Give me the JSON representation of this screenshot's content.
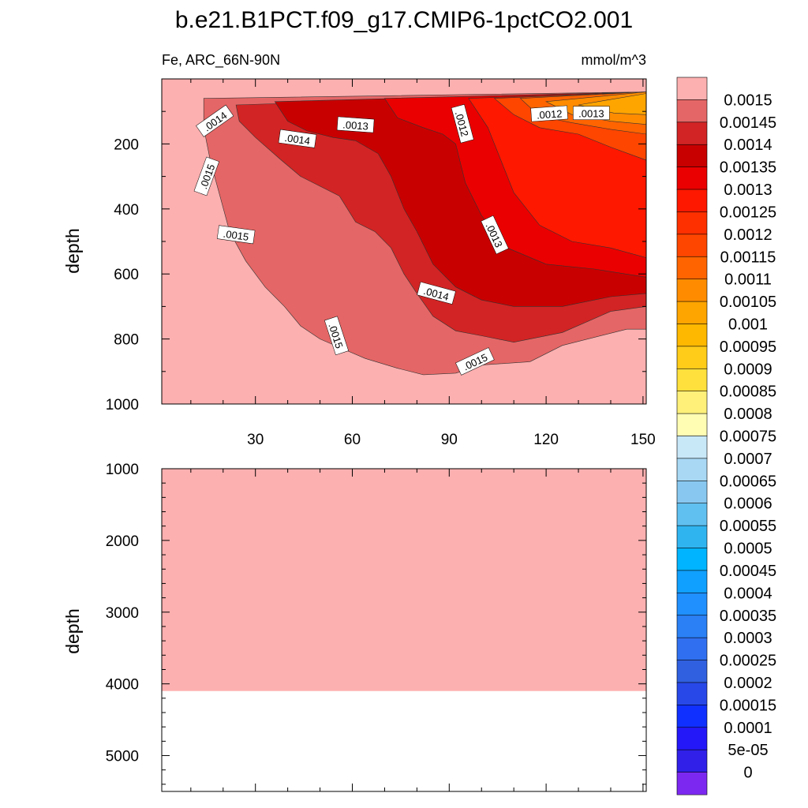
{
  "chart_data": {
    "type": "contour",
    "title": "b.e21.B1PCT.f09_g17.CMIP6-1pctCO2.001",
    "left_string": "Fe, ARC_66N-90N",
    "right_string": "mmol/m^3",
    "panels": [
      {
        "name": "upper",
        "ylabel": "depth",
        "xlabel": "",
        "xlim": [
          1,
          151
        ],
        "ylim": [
          0,
          1000
        ],
        "y_reversed": true,
        "x_ticks": [
          30,
          60,
          90,
          120,
          150
        ],
        "x_tick_labels": [
          "30",
          "60",
          "90",
          "120",
          "150"
        ],
        "y_ticks": [
          200,
          400,
          600,
          800,
          1000
        ],
        "y_tick_labels": [
          "200",
          "400",
          "600",
          "800",
          "1000"
        ],
        "regions": [
          {
            "level": 0.0015,
            "color": "#fdb0b0",
            "pts": [
              [
                1,
                0
              ],
              [
                151,
                0
              ],
              [
                151,
                1000
              ],
              [
                1,
                1000
              ]
            ]
          },
          {
            "level": 0.00145,
            "color": "#e56666",
            "pts": [
              [
                14,
                60
              ],
              [
                151,
                40
              ],
              [
                151,
                770
              ],
              [
                145,
                770
              ],
              [
                125,
                820
              ],
              [
                115,
                870
              ],
              [
                100,
                880
              ],
              [
                92,
                905
              ],
              [
                82,
                910
              ],
              [
                74,
                890
              ],
              [
                64,
                860
              ],
              [
                57,
                830
              ],
              [
                50,
                800
              ],
              [
                44,
                760
              ],
              [
                39,
                700
              ],
              [
                33,
                640
              ],
              [
                27,
                560
              ],
              [
                22,
                470
              ],
              [
                19,
                360
              ],
              [
                16,
                250
              ],
              [
                14,
                150
              ]
            ]
          },
          {
            "level": 0.0014,
            "color": "#d22424",
            "pts": [
              [
                24,
                80
              ],
              [
                151,
                40
              ],
              [
                151,
                700
              ],
              [
                140,
                715
              ],
              [
                125,
                780
              ],
              [
                110,
                810
              ],
              [
                100,
                790
              ],
              [
                92,
                775
              ],
              [
                85,
                730
              ],
              [
                80,
                660
              ],
              [
                76,
                600
              ],
              [
                72,
                520
              ],
              [
                67,
                470
              ],
              [
                61,
                440
              ],
              [
                56,
                360
              ],
              [
                50,
                330
              ],
              [
                44,
                300
              ],
              [
                38,
                250
              ],
              [
                30,
                180
              ],
              [
                25,
                130
              ]
            ]
          },
          {
            "level": 0.00135,
            "color": "#c80000",
            "pts": [
              [
                36,
                70
              ],
              [
                151,
                40
              ],
              [
                151,
                660
              ],
              [
                140,
                670
              ],
              [
                125,
                700
              ],
              [
                110,
                700
              ],
              [
                100,
                680
              ],
              [
                92,
                640
              ],
              [
                85,
                570
              ],
              [
                80,
                470
              ],
              [
                76,
                400
              ],
              [
                72,
                300
              ],
              [
                68,
                230
              ],
              [
                61,
                190
              ],
              [
                54,
                180
              ],
              [
                46,
                160
              ],
              [
                40,
                130
              ]
            ]
          },
          {
            "level": 0.0013,
            "color": "#ea0000",
            "pts": [
              [
                70,
                60
              ],
              [
                151,
                40
              ],
              [
                151,
                610
              ],
              [
                135,
                585
              ],
              [
                120,
                570
              ],
              [
                108,
                520
              ],
              [
                100,
                420
              ],
              [
                95,
                320
              ],
              [
                92,
                200
              ],
              [
                88,
                170
              ],
              [
                82,
                150
              ],
              [
                74,
                120
              ]
            ]
          },
          {
            "level": 0.00125,
            "color": "#ff1800",
            "pts": [
              [
                96,
                60
              ],
              [
                151,
                40
              ],
              [
                151,
                550
              ],
              [
                140,
                520
              ],
              [
                128,
                500
              ],
              [
                118,
                450
              ],
              [
                110,
                350
              ],
              [
                106,
                250
              ],
              [
                102,
                150
              ]
            ]
          },
          {
            "level": 0.0012,
            "color": "#ff4600",
            "pts": [
              [
                104,
                60
              ],
              [
                151,
                40
              ],
              [
                151,
                250
              ],
              [
                140,
                210
              ],
              [
                130,
                170
              ],
              [
                118,
                150
              ],
              [
                110,
                110
              ]
            ]
          },
          {
            "level": 0.00115,
            "color": "#ff6400",
            "pts": [
              [
                112,
                60
              ],
              [
                151,
                40
              ],
              [
                151,
                170
              ],
              [
                140,
                155
              ],
              [
                128,
                135
              ],
              [
                118,
                115
              ]
            ]
          },
          {
            "level": 0.0011,
            "color": "#ff8c00",
            "pts": [
              [
                120,
                70
              ],
              [
                151,
                40
              ],
              [
                151,
                140
              ],
              [
                140,
                130
              ],
              [
                128,
                110
              ]
            ]
          },
          {
            "level": 0.00105,
            "color": "#ffa500",
            "pts": [
              [
                130,
                80
              ],
              [
                151,
                45
              ],
              [
                151,
                110
              ],
              [
                141,
                105
              ]
            ]
          }
        ],
        "contour_labels": [
          {
            "text": ".0014",
            "x": 17.5,
            "y": 130,
            "angle": -35
          },
          {
            "text": ".0014",
            "x": 43,
            "y": 185,
            "angle": 8
          },
          {
            "text": ".0013",
            "x": 61,
            "y": 142,
            "angle": 4
          },
          {
            "text": ".0012",
            "x": 94,
            "y": 138,
            "angle": 75
          },
          {
            "text": ".0012",
            "x": 121,
            "y": 108,
            "angle": -4
          },
          {
            "text": ".0013",
            "x": 134,
            "y": 106,
            "angle": 0
          },
          {
            "text": ".0015",
            "x": 15,
            "y": 300,
            "angle": -70
          },
          {
            "text": ".0015",
            "x": 24,
            "y": 480,
            "angle": 8
          },
          {
            "text": ".0013",
            "x": 104,
            "y": 480,
            "angle": 65
          },
          {
            "text": ".0014",
            "x": 86,
            "y": 660,
            "angle": 15
          },
          {
            "text": ".0015",
            "x": 55,
            "y": 790,
            "angle": 72
          },
          {
            "text": ".0015",
            "x": 98,
            "y": 870,
            "angle": -25
          }
        ]
      },
      {
        "name": "lower",
        "ylabel": "depth",
        "xlabel": "",
        "xlim": [
          1,
          151
        ],
        "ylim": [
          1000,
          5500
        ],
        "y_reversed": true,
        "y_ticks": [
          1000,
          2000,
          3000,
          4000,
          5000
        ],
        "y_tick_labels": [
          "1000",
          "2000",
          "3000",
          "4000",
          "5000"
        ],
        "fill": {
          "level": 0.0015,
          "color": "#fdb0b0",
          "from": 1000,
          "to": 4100
        },
        "below_fill_color": "#ffffff"
      }
    ],
    "colorbar": {
      "levels": [
        "0.0015",
        "0.00145",
        "0.0014",
        "0.00135",
        "0.0013",
        "0.00125",
        "0.0012",
        "0.00115",
        "0.0011",
        "0.00105",
        "0.001",
        "0.00095",
        "0.0009",
        "0.00085",
        "0.0008",
        "0.00075",
        "0.0007",
        "0.00065",
        "0.0006",
        "0.00055",
        "0.0005",
        "0.00045",
        "0.0004",
        "0.00035",
        "0.0003",
        "0.00025",
        "0.0002",
        "0.00015",
        "0.0001",
        "5e-05",
        "0"
      ],
      "colors": [
        "#fdb0b0",
        "#e56666",
        "#d22424",
        "#c80000",
        "#ea0000",
        "#ff1800",
        "#ff3000",
        "#ff4600",
        "#ff6400",
        "#ff8c00",
        "#ffa500",
        "#ffb800",
        "#ffcc19",
        "#ffe03c",
        "#fff07a",
        "#fffcb4",
        "#c8e8f8",
        "#a8d8f4",
        "#88c8f0",
        "#60c0f0",
        "#30b4f0",
        "#00b4ff",
        "#10a0ff",
        "#2090ff",
        "#2a80f4",
        "#3070f0",
        "#3060e0",
        "#2848e8",
        "#1030ff",
        "#2418f8",
        "#3020e8",
        "#7c28f0"
      ]
    }
  }
}
